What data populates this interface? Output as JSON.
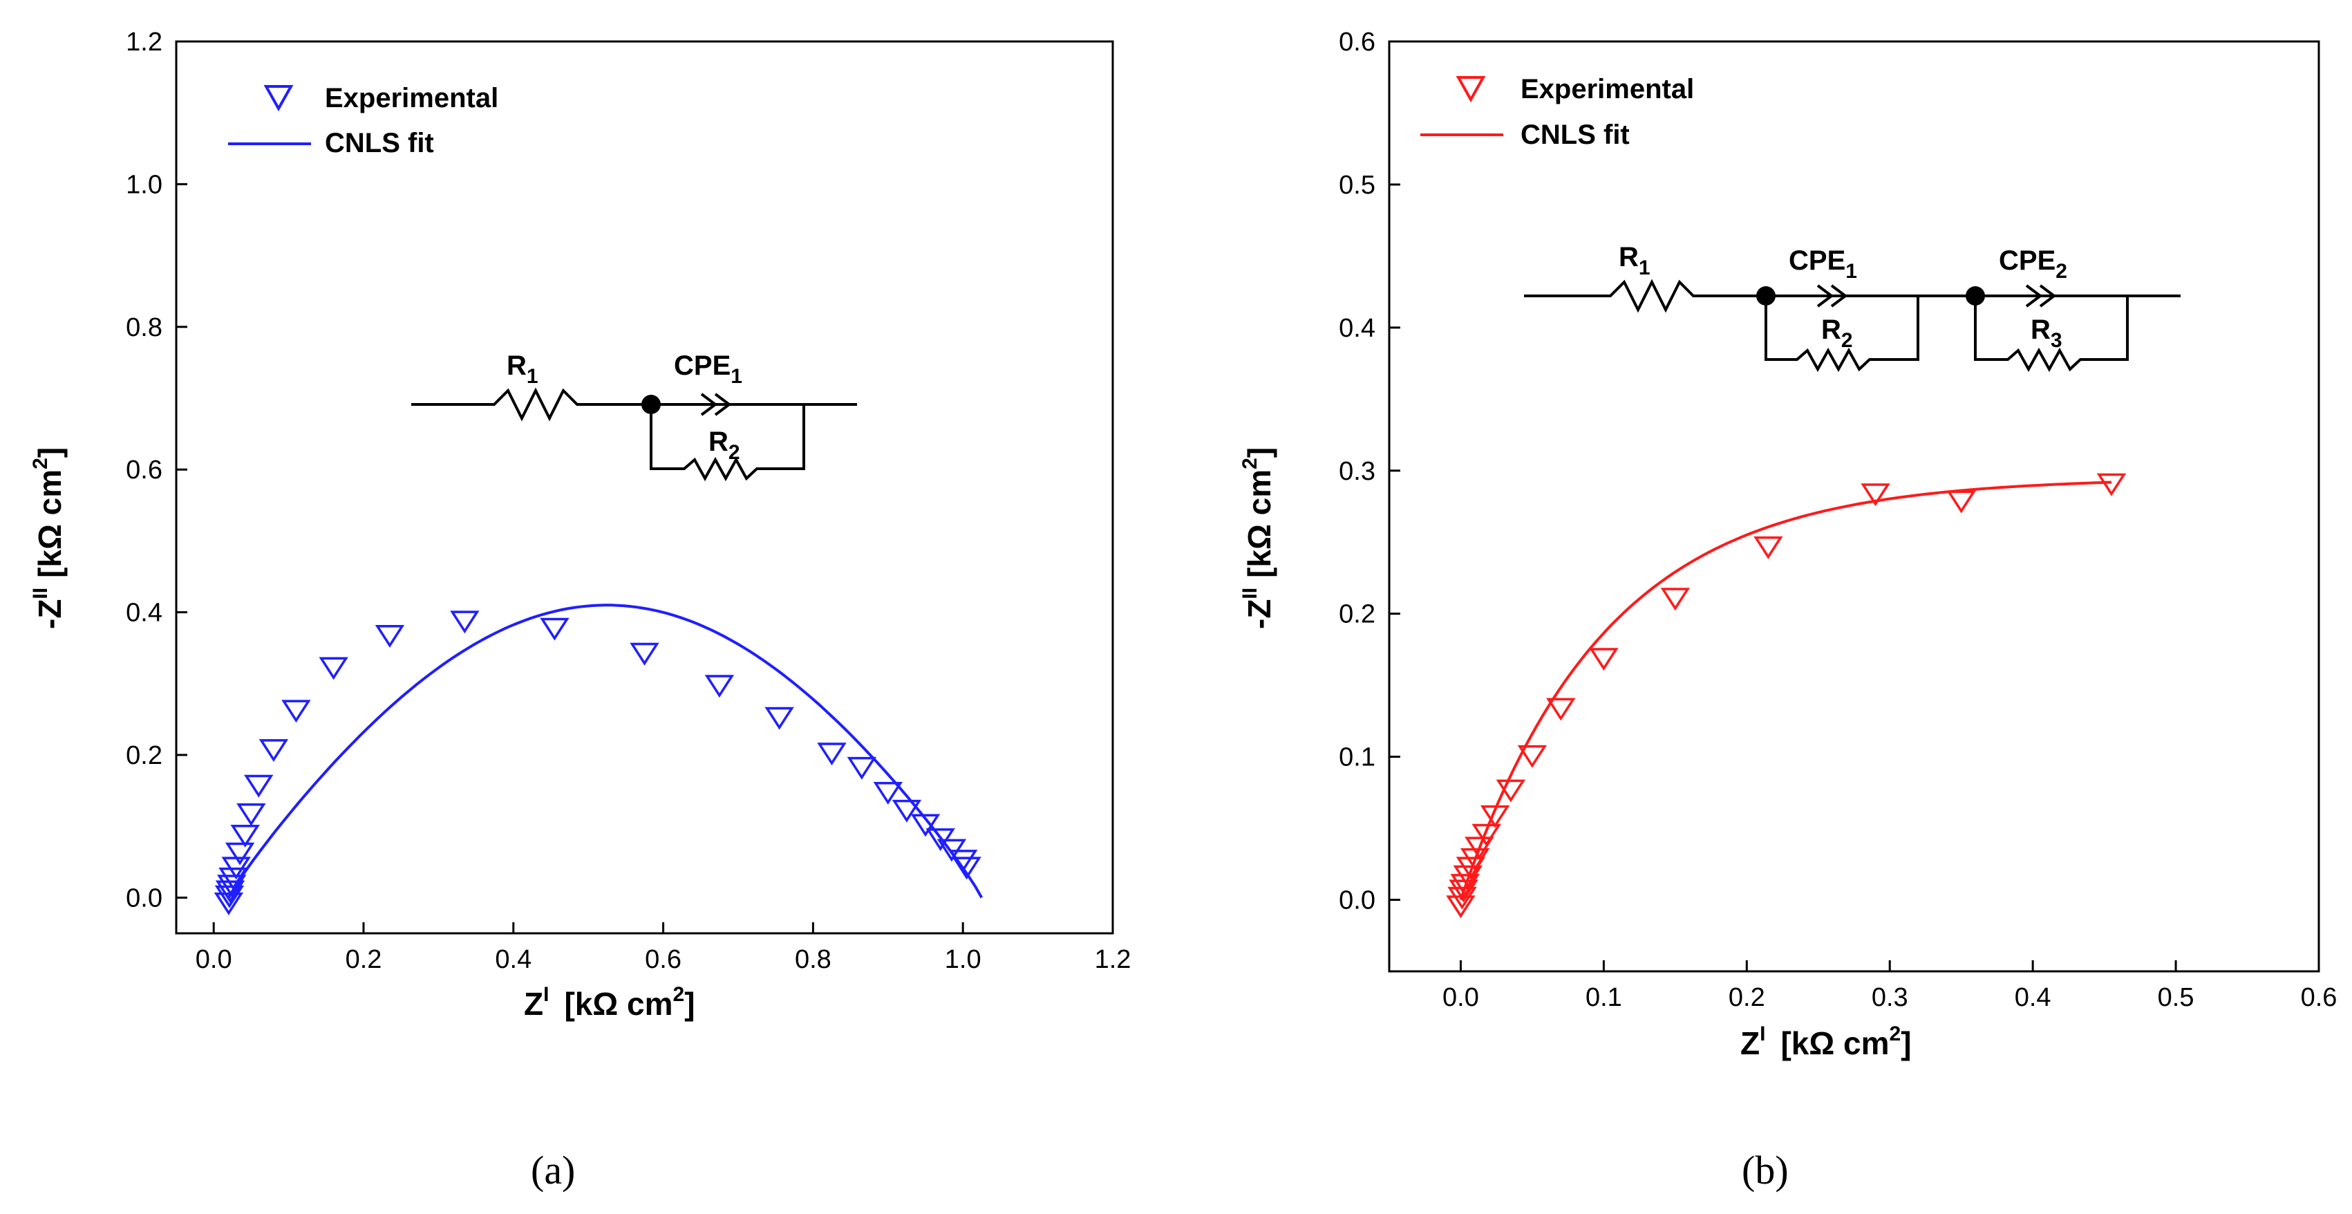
{
  "colors": {
    "a": "#1f1fff",
    "b": "#ff1a1a",
    "axis": "#000000"
  },
  "chart_data": [
    {
      "type": "scatter",
      "panel_label": "(a)",
      "xlabel": "Z",
      "xlabel_sup": "I",
      "xlabel_unit": "[kΩ cm",
      "xlabel_unit_sup": "2",
      "xlabel_unit_end": "]",
      "ylabel": "-Z",
      "ylabel_sup": "II",
      "ylabel_unit": "[kΩ cm",
      "ylabel_unit_sup": "2",
      "ylabel_unit_end": "]",
      "xlim": [
        -0.05,
        1.2
      ],
      "ylim": [
        -0.05,
        1.2
      ],
      "xticks": [
        0.0,
        0.2,
        0.4,
        0.6,
        0.8,
        1.0,
        1.2
      ],
      "xtick_labels": [
        "0.0",
        "0.2",
        "0.4",
        "0.6",
        "0.8",
        "1.0",
        "1.2"
      ],
      "yticks": [
        0.0,
        0.2,
        0.4,
        0.6,
        0.8,
        1.0,
        1.2
      ],
      "ytick_labels": [
        "0.0",
        "0.2",
        "0.4",
        "0.6",
        "0.8",
        "1.0",
        "1.2"
      ],
      "legend": {
        "experimental": "Experimental",
        "fit": "CNLS fit",
        "position": "top-left"
      },
      "series": [
        {
          "name": "Experimental",
          "marker": "triangle-down",
          "x": [
            0.02,
            0.021,
            0.022,
            0.024,
            0.026,
            0.03,
            0.035,
            0.042,
            0.05,
            0.06,
            0.08,
            0.11,
            0.16,
            0.235,
            0.335,
            0.455,
            0.575,
            0.675,
            0.755,
            0.825,
            0.865,
            0.9,
            0.925,
            0.95,
            0.97,
            0.985,
            1.0,
            1.005
          ],
          "y": [
            -0.005,
            0.005,
            0.012,
            0.02,
            0.03,
            0.045,
            0.065,
            0.09,
            0.12,
            0.16,
            0.21,
            0.265,
            0.325,
            0.37,
            0.39,
            0.38,
            0.345,
            0.3,
            0.255,
            0.205,
            0.185,
            0.15,
            0.125,
            0.105,
            0.085,
            0.07,
            0.055,
            0.045
          ]
        },
        {
          "name": "CNLS fit",
          "line": true,
          "fn": "arc",
          "params": {
            "x0": 0.02,
            "x1": 1.025,
            "ymax": 0.41,
            "peak_x": 0.525
          }
        }
      ],
      "circuit": {
        "r1": "R",
        "r1_sub": "1",
        "cpe1": "CPE",
        "cpe1_sub": "1",
        "r2": "R",
        "r2_sub": "2"
      }
    },
    {
      "type": "scatter",
      "panel_label": "(b)",
      "xlabel": "Z",
      "xlabel_sup": "I",
      "xlabel_unit": "[kΩ cm",
      "xlabel_unit_sup": "2",
      "xlabel_unit_end": "]",
      "ylabel": "-Z",
      "ylabel_sup": "II",
      "ylabel_unit": "[kΩ cm",
      "ylabel_unit_sup": "2",
      "ylabel_unit_end": "]",
      "xlim": [
        -0.05,
        0.6
      ],
      "ylim": [
        -0.05,
        0.6
      ],
      "xticks": [
        0.0,
        0.1,
        0.2,
        0.3,
        0.4,
        0.5,
        0.6
      ],
      "xtick_labels": [
        "0.0",
        "0.1",
        "0.2",
        "0.3",
        "0.4",
        "0.5",
        "0.6"
      ],
      "yticks": [
        0.0,
        0.1,
        0.2,
        0.3,
        0.4,
        0.5,
        0.6
      ],
      "ytick_labels": [
        "0.0",
        "0.1",
        "0.2",
        "0.3",
        "0.4",
        "0.5",
        "0.6"
      ],
      "legend": {
        "experimental": "Experimental",
        "fit": "CNLS fit",
        "position": "top-left"
      },
      "series": [
        {
          "name": "Experimental",
          "marker": "triangle-down",
          "x": [
            0.0,
            0.001,
            0.002,
            0.003,
            0.005,
            0.007,
            0.01,
            0.013,
            0.018,
            0.024,
            0.035,
            0.05,
            0.07,
            0.1,
            0.15,
            0.215,
            0.29,
            0.35,
            0.455
          ],
          "y": [
            -0.003,
            0.003,
            0.008,
            0.012,
            0.018,
            0.024,
            0.03,
            0.038,
            0.047,
            0.06,
            0.078,
            0.102,
            0.135,
            0.17,
            0.212,
            0.248,
            0.285,
            0.28,
            0.292
          ]
        },
        {
          "name": "CNLS fit",
          "line": true,
          "fn": "exp",
          "params": {
            "x0": 0.0,
            "x1": 0.455,
            "a": 0.295,
            "k": 10.0
          }
        }
      ],
      "circuit": {
        "r1": "R",
        "r1_sub": "1",
        "cpe1": "CPE",
        "cpe1_sub": "1",
        "r2": "R",
        "r2_sub": "2",
        "cpe2": "CPE",
        "cpe2_sub": "2",
        "r3": "R",
        "r3_sub": "3"
      }
    }
  ]
}
